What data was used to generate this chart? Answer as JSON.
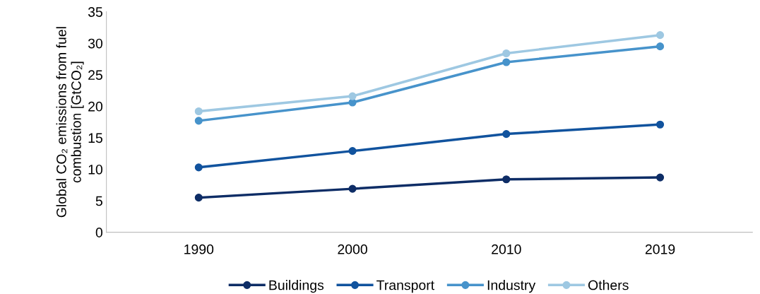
{
  "chart_data": {
    "type": "line",
    "ylabel": "Global CO₂ emissions from fuel combustion [GtCO₂]",
    "categories": [
      "1990",
      "2000",
      "2010",
      "2019"
    ],
    "series": [
      {
        "name": "Buildings",
        "color": "#0e2d66",
        "values": [
          5.5,
          6.9,
          8.4,
          8.7
        ]
      },
      {
        "name": "Transport",
        "color": "#11539e",
        "values": [
          10.3,
          12.9,
          15.6,
          17.1
        ]
      },
      {
        "name": "Industry",
        "color": "#4793cb",
        "values": [
          17.7,
          20.6,
          27.0,
          29.5
        ]
      },
      {
        "name": "Others",
        "color": "#9ec8e2",
        "values": [
          19.2,
          21.6,
          28.4,
          31.3
        ]
      }
    ],
    "ylim": [
      0,
      35
    ],
    "yticks": [
      0,
      5,
      10,
      15,
      20,
      25,
      30,
      35
    ],
    "grid": false,
    "legend": "bottom",
    "marker": "circle"
  }
}
